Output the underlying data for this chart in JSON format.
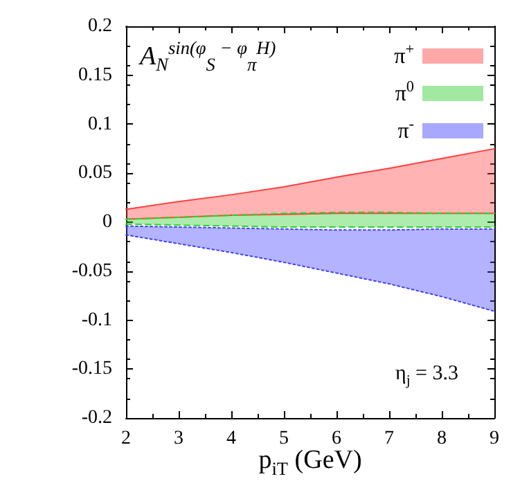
{
  "chart_data": {
    "type": "line",
    "xlabel": "p$_{iT}$ (GeV)",
    "annotations": [
      "A$_{N}$$^{sin(φ}$$_{S}$$^{ − φ}$$_{π}$$^{H)}$",
      "η$_{j}$ = 3.3"
    ],
    "x": [
      2,
      3,
      4,
      5,
      6,
      7,
      8,
      9
    ],
    "xlim": [
      2,
      9
    ],
    "xticks": [
      2,
      3,
      4,
      5,
      6,
      7,
      8,
      9
    ],
    "ylim": [
      -0.2,
      0.2
    ],
    "yticks": [
      -0.2,
      -0.15,
      -0.1,
      -0.05,
      0,
      0.05,
      0.1,
      0.15,
      0.2
    ],
    "legend": "top right",
    "series": [
      {
        "name": "π$^{+}$",
        "color": "#ff4040",
        "line_style": "solid",
        "values": [
          0.013,
          0.021,
          0.028,
          0.036,
          0.046,
          0.055,
          0.065,
          0.075
        ],
        "lower": [
          0.003,
          0.005,
          0.007,
          0.008,
          0.009,
          0.009,
          0.009,
          0.009
        ],
        "upper": [
          0.013,
          0.021,
          0.028,
          0.036,
          0.046,
          0.055,
          0.065,
          0.075
        ]
      },
      {
        "color": "#ff4040",
        "line_style": "solid",
        "values": [
          0.003,
          0.005,
          0.007,
          0.008,
          0.009,
          0.009,
          0.009,
          0.009
        ]
      },
      {
        "name": "π$^{0}$",
        "color": "#30d030",
        "line_style": "dashed",
        "values": [
          0.003,
          0.005,
          0.007,
          0.009,
          0.01,
          0.01,
          0.009,
          0.009
        ],
        "lower": [
          -0.002,
          -0.003,
          -0.004,
          -0.005,
          -0.005,
          -0.005,
          -0.005,
          -0.005
        ],
        "upper": [
          0.003,
          0.005,
          0.007,
          0.009,
          0.01,
          0.01,
          0.009,
          0.009
        ]
      },
      {
        "color": "#30d030",
        "line_style": "dashed",
        "values": [
          -0.002,
          -0.003,
          -0.004,
          -0.005,
          -0.005,
          -0.005,
          -0.005,
          -0.005
        ]
      },
      {
        "name": "π$^{-}$",
        "color": "#4040ff",
        "line_style": "dotted",
        "values": [
          -0.004,
          -0.005,
          -0.006,
          -0.007,
          -0.008,
          -0.008,
          -0.007,
          -0.007
        ],
        "lower": [
          -0.013,
          -0.022,
          -0.031,
          -0.041,
          -0.052,
          -0.063,
          -0.076,
          -0.091
        ],
        "upper": [
          -0.004,
          -0.005,
          -0.006,
          -0.007,
          -0.008,
          -0.008,
          -0.007,
          -0.007
        ]
      },
      {
        "color": "#4040ff",
        "line_style": "dotted",
        "values": [
          -0.013,
          -0.022,
          -0.031,
          -0.041,
          -0.052,
          -0.063,
          -0.076,
          -0.091
        ]
      }
    ]
  }
}
